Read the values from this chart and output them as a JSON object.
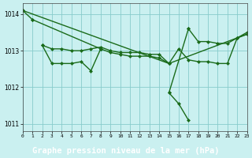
{
  "title": "Graphe pression niveau de la mer (hPa)",
  "bg_color": "#caf0f0",
  "grid_color": "#88cccc",
  "line_color": "#1a6b1a",
  "label_bg": "#3a8a3a",
  "label_fg": "#ffffff",
  "series": [
    {
      "x": [
        0,
        1
      ],
      "y": [
        1014.1,
        1013.85
      ]
    },
    {
      "x": [
        2,
        3,
        4,
        5,
        6,
        7,
        8
      ],
      "y": [
        1013.15,
        1012.65,
        1012.65,
        1012.65,
        1012.7,
        1012.45,
        1013.05
      ]
    },
    {
      "x": [
        2,
        3,
        4,
        5,
        6,
        7,
        8,
        9,
        10,
        11,
        12,
        13,
        14,
        15
      ],
      "y": [
        1013.15,
        1013.05,
        1013.05,
        1013.0,
        1013.0,
        1013.05,
        1013.1,
        1013.0,
        1012.95,
        1012.95,
        1012.95,
        1012.9,
        1012.9,
        1012.65
      ]
    },
    {
      "x": [
        8,
        9,
        10,
        11,
        12,
        13,
        14,
        15,
        16,
        17,
        18,
        19,
        20,
        21,
        22,
        23
      ],
      "y": [
        1013.05,
        1012.95,
        1012.9,
        1012.85,
        1012.85,
        1012.85,
        1012.8,
        1012.65,
        1013.05,
        1012.75,
        1012.7,
        1012.7,
        1012.65,
        1012.65,
        1013.35,
        1013.45
      ]
    },
    {
      "x": [
        15,
        16,
        17
      ],
      "y": [
        1011.85,
        1011.55,
        1011.1
      ]
    },
    {
      "x": [
        17,
        18,
        19,
        20,
        21,
        22,
        23
      ],
      "y": [
        1013.6,
        1013.25,
        1013.25,
        1013.2,
        1013.2,
        1013.35,
        1013.5
      ]
    },
    {
      "x": [
        1,
        8
      ],
      "y": [
        1013.85,
        1013.05
      ]
    },
    {
      "x": [
        0,
        15
      ],
      "y": [
        1014.1,
        1012.65
      ]
    },
    {
      "x": [
        15,
        23
      ],
      "y": [
        1012.65,
        1013.45
      ]
    },
    {
      "x": [
        15,
        17
      ],
      "y": [
        1011.85,
        1013.6
      ]
    }
  ],
  "xlim": [
    0,
    23
  ],
  "ylim": [
    1010.8,
    1014.3
  ],
  "yticks": [
    1011,
    1012,
    1013,
    1014
  ],
  "xticks": [
    0,
    1,
    2,
    3,
    4,
    5,
    6,
    7,
    8,
    9,
    10,
    11,
    12,
    13,
    14,
    15,
    16,
    17,
    18,
    19,
    20,
    21,
    22,
    23
  ],
  "markersize": 2.5,
  "linewidth": 1.0
}
